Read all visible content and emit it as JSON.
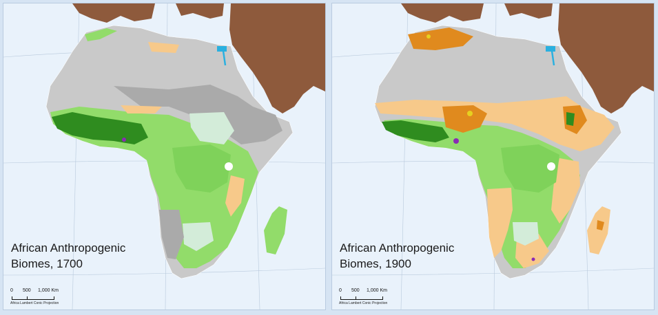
{
  "maps": [
    {
      "title": "African Anthropogenic\nBiomes, 1700",
      "scale": {
        "zero": "0",
        "mid": "500",
        "end": "1,000 Km"
      },
      "projection": "Africa Lambert Conic Projection"
    },
    {
      "title": "African Anthropogenic\nBiomes, 1900",
      "scale": {
        "zero": "0",
        "mid": "500",
        "end": "1,000 Km"
      },
      "projection": "Africa Lambert Conic Projection"
    }
  ],
  "colors": {
    "ocean": "#e9f2fb",
    "desert_wild": "#c9c9c9",
    "barren_dark": "#a9a9a9",
    "forest_wild": "#92dc6a",
    "dense_forest": "#2f8c1f",
    "pale_woodland": "#d3ecd9",
    "rangeland": "#f7c98a",
    "cropland": "#e08a1e",
    "village_yellow": "#e6d020",
    "urban_purple": "#8a2bb5",
    "nile_blue": "#2ab0e0",
    "asia_brown": "#8e5a3c"
  }
}
